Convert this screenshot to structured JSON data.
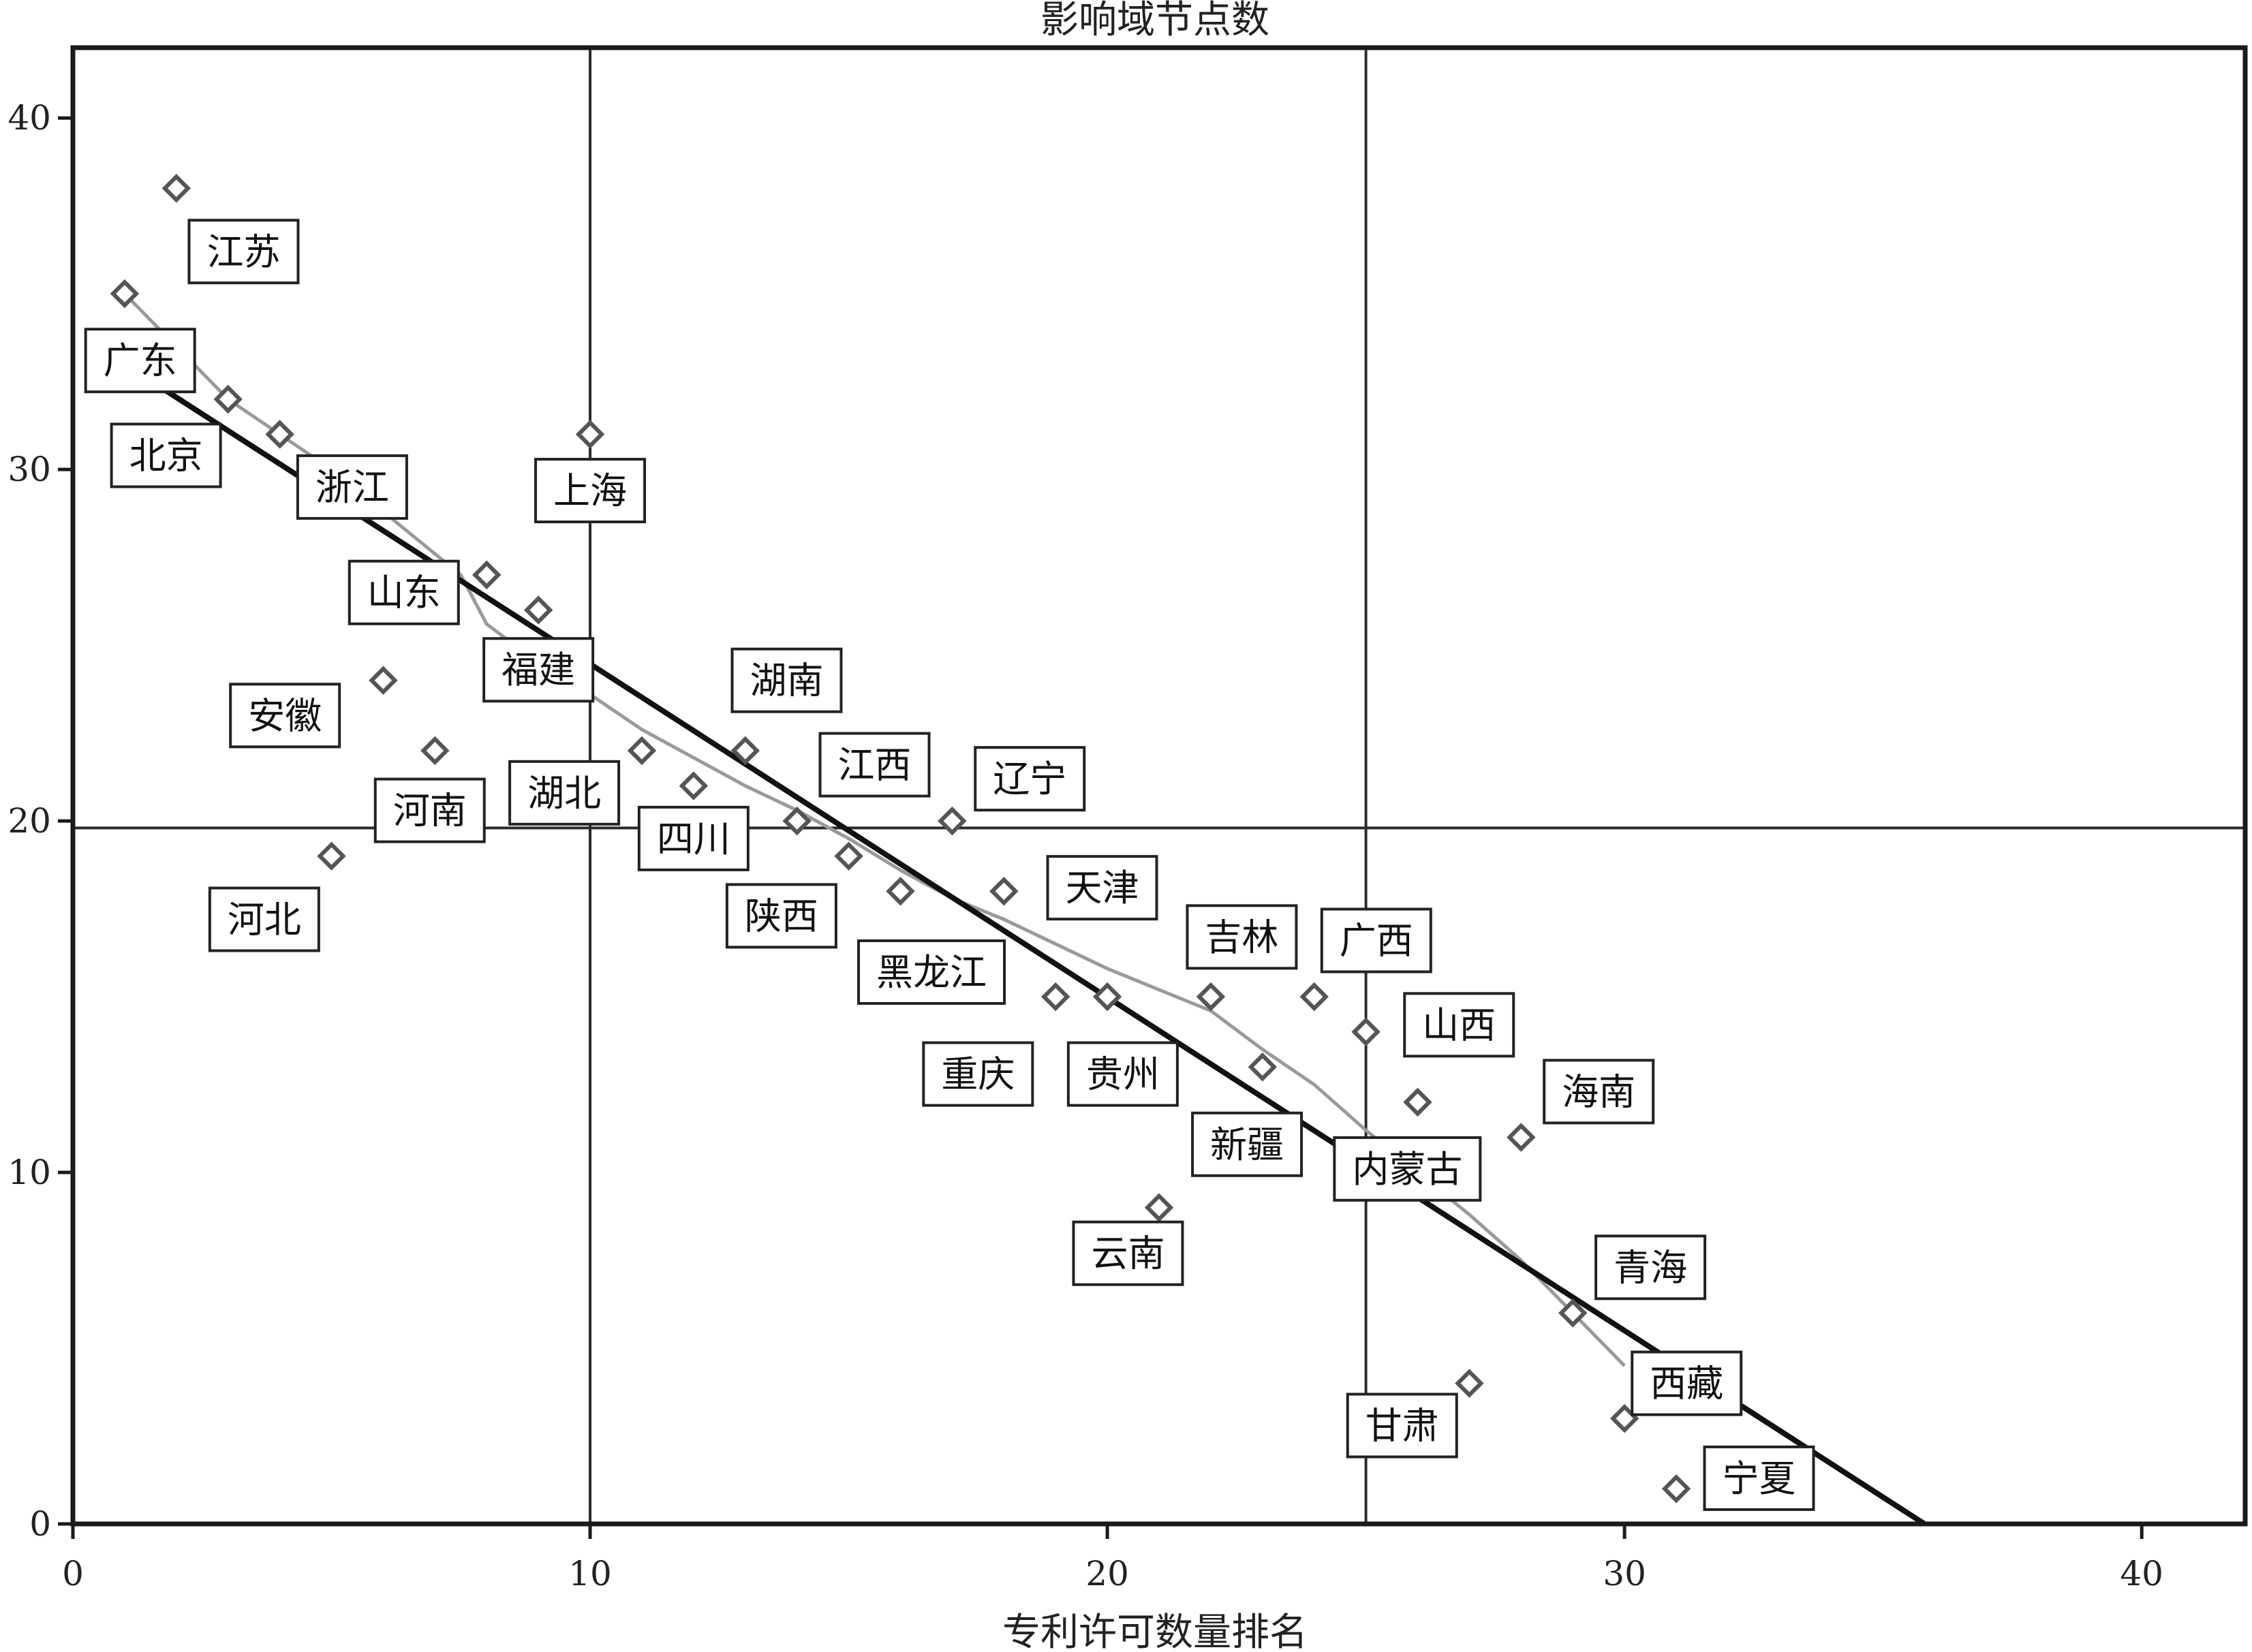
{
  "chart_data": {
    "type": "scatter",
    "title": "",
    "xlabel": "专利许可数量排名",
    "ylabel": "影响域节点数",
    "xlim": [
      0,
      42
    ],
    "ylim": [
      0,
      42
    ],
    "xticks": [
      0,
      10,
      20,
      30,
      40
    ],
    "yticks": [
      0,
      10,
      20,
      30,
      40
    ],
    "reference_lines": {
      "x": [
        10,
        25
      ],
      "y": [
        19.8
      ]
    },
    "fit_line": {
      "x": [
        1,
        35.8
      ],
      "y": [
        33,
        0
      ]
    },
    "smooth_line": {
      "x": [
        1,
        2,
        3,
        4,
        5,
        6,
        7,
        7.5,
        8,
        9,
        10,
        11,
        12,
        13,
        14,
        15,
        16,
        17,
        18,
        19,
        20,
        21,
        22,
        23,
        24,
        25,
        26,
        27,
        28,
        29,
        30
      ],
      "y": [
        35,
        33.5,
        32,
        31,
        30,
        28.8,
        27.6,
        27,
        25.6,
        24.5,
        23.6,
        22.6,
        21.8,
        21,
        20.3,
        19.5,
        18.6,
        17.8,
        17.2,
        16.5,
        15.8,
        15.2,
        14.6,
        13.5,
        12.5,
        11.2,
        10,
        8.8,
        7.5,
        6,
        4.5
      ]
    },
    "points": [
      {
        "name": "江苏",
        "x": 2,
        "y": 38
      },
      {
        "name": "广东",
        "x": 1,
        "y": 35
      },
      {
        "name": "北京",
        "x": 3,
        "y": 32
      },
      {
        "name": "浙江",
        "x": 4,
        "y": 31
      },
      {
        "name": "上海",
        "x": 10,
        "y": 31
      },
      {
        "name": "山东",
        "x": 8,
        "y": 27
      },
      {
        "name": "福建",
        "x": 9,
        "y": 26
      },
      {
        "name": "安徽",
        "x": 6,
        "y": 24
      },
      {
        "name": "河南",
        "x": 7,
        "y": 22
      },
      {
        "name": "湖北",
        "x": 11,
        "y": 22
      },
      {
        "name": "湖南",
        "x": 13,
        "y": 22
      },
      {
        "name": "四川",
        "x": 12,
        "y": 21
      },
      {
        "name": "江西",
        "x": 14,
        "y": 20
      },
      {
        "name": "辽宁",
        "x": 17,
        "y": 20
      },
      {
        "name": "河北",
        "x": 5,
        "y": 19
      },
      {
        "name": "陕西",
        "x": 15,
        "y": 19
      },
      {
        "name": "天津",
        "x": 18,
        "y": 18
      },
      {
        "name": "黑龙江",
        "x": 16,
        "y": 18
      },
      {
        "name": "重庆",
        "x": 19,
        "y": 15
      },
      {
        "name": "贵州",
        "x": 20,
        "y": 15
      },
      {
        "name": "吉林",
        "x": 22,
        "y": 15
      },
      {
        "name": "广西",
        "x": 24,
        "y": 15
      },
      {
        "name": "山西",
        "x": 25,
        "y": 14
      },
      {
        "name": "新疆",
        "x": 23,
        "y": 13
      },
      {
        "name": "海南",
        "x": 26,
        "y": 12
      },
      {
        "name": "内蒙古",
        "x": 28,
        "y": 11
      },
      {
        "name": "云南",
        "x": 21,
        "y": 9
      },
      {
        "name": "青海",
        "x": 29,
        "y": 6
      },
      {
        "name": "甘肃",
        "x": 27,
        "y": 4
      },
      {
        "name": "西藏",
        "x": 30,
        "y": 3
      },
      {
        "name": "宁夏",
        "x": 31,
        "y": 1
      }
    ],
    "labels": [
      {
        "text": "江苏",
        "x": 3.3,
        "y": 36.2
      },
      {
        "text": "广东",
        "x": 1.3,
        "y": 33.1
      },
      {
        "text": "北京",
        "x": 1.8,
        "y": 30.4
      },
      {
        "text": "浙江",
        "x": 5.4,
        "y": 29.5
      },
      {
        "text": "上海",
        "x": 10,
        "y": 29.4
      },
      {
        "text": "山东",
        "x": 6.4,
        "y": 26.5
      },
      {
        "text": "福建",
        "x": 9,
        "y": 24.3
      },
      {
        "text": "安徽",
        "x": 4.1,
        "y": 23
      },
      {
        "text": "湖南",
        "x": 13.8,
        "y": 24
      },
      {
        "text": "湖北",
        "x": 9.5,
        "y": 20.8
      },
      {
        "text": "河南",
        "x": 6.9,
        "y": 20.3
      },
      {
        "text": "江西",
        "x": 15.5,
        "y": 21.6
      },
      {
        "text": "辽宁",
        "x": 18.5,
        "y": 21.2
      },
      {
        "text": "四川",
        "x": 12,
        "y": 19.5
      },
      {
        "text": "天津",
        "x": 19.9,
        "y": 18.1
      },
      {
        "text": "陕西",
        "x": 13.7,
        "y": 17.3
      },
      {
        "text": "河北",
        "x": 3.7,
        "y": 17.2
      },
      {
        "text": "黑龙江",
        "x": 16.6,
        "y": 15.7
      },
      {
        "text": "吉林",
        "x": 22.6,
        "y": 16.7
      },
      {
        "text": "广西",
        "x": 25.2,
        "y": 16.6
      },
      {
        "text": "山西",
        "x": 26.8,
        "y": 14.2
      },
      {
        "text": "重庆",
        "x": 17.5,
        "y": 12.8
      },
      {
        "text": "贵州",
        "x": 20.3,
        "y": 12.8
      },
      {
        "text": "海南",
        "x": 29.5,
        "y": 12.3
      },
      {
        "text": "新疆",
        "x": 22.7,
        "y": 10.8
      },
      {
        "text": "内蒙古",
        "x": 25.8,
        "y": 10.1
      },
      {
        "text": "云南",
        "x": 20.4,
        "y": 7.7
      },
      {
        "text": "青海",
        "x": 30.5,
        "y": 7.3
      },
      {
        "text": "西藏",
        "x": 31.2,
        "y": 4
      },
      {
        "text": "甘肃",
        "x": 25.7,
        "y": 2.8
      },
      {
        "text": "宁夏",
        "x": 32.6,
        "y": 1.3
      }
    ]
  }
}
